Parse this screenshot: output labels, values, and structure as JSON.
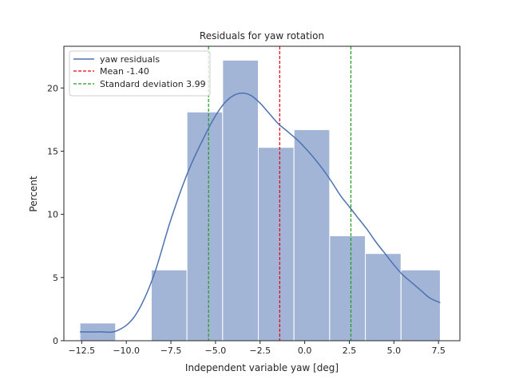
{
  "chart_data": {
    "type": "bar",
    "title": "Residuals for yaw rotation",
    "xlabel": "Independent variable yaw [deg]",
    "ylabel": "Percent",
    "xlim": [
      -13.5,
      8.7
    ],
    "ylim": [
      0,
      23.3
    ],
    "xticks": [
      -12.5,
      -10.0,
      -7.5,
      -5.0,
      -2.5,
      0.0,
      2.5,
      5.0,
      7.5
    ],
    "xtick_labels": [
      "−12.5",
      "−10.0",
      "−7.5",
      "−5.0",
      "−2.5",
      "0.0",
      "2.5",
      "5.0",
      "7.5"
    ],
    "yticks": [
      0,
      5,
      10,
      15,
      20
    ],
    "ytick_labels": [
      "0",
      "5",
      "10",
      "15",
      "20"
    ],
    "grid": false,
    "legend_position": "top-left",
    "colors": {
      "bars": "#a3b5d7",
      "kde": "#4c72b0",
      "mean": "#e8000b",
      "std": "#1a9e1a"
    },
    "histogram": {
      "bin_edges": [
        -12.6,
        -10.6,
        -8.6,
        -6.6,
        -4.6,
        -2.6,
        -0.6,
        1.4,
        3.4,
        5.4,
        7.4
      ],
      "bin_edges_plot": [
        -12.6,
        -10.6,
        -8.6,
        -6.6,
        -4.6,
        -2.6,
        -0.6,
        1.4,
        3.4,
        5.4,
        7.6
      ],
      "values": [
        1.4,
        0.0,
        5.6,
        18.1,
        22.2,
        15.3,
        16.7,
        8.3,
        6.9,
        5.6
      ]
    },
    "series": [
      {
        "name": "yaw residuals",
        "type": "line",
        "x": [
          -12.6,
          -11.5,
          -10.5,
          -9.5,
          -8.5,
          -7.5,
          -6.5,
          -5.5,
          -5.0,
          -4.5,
          -4.0,
          -3.5,
          -3.0,
          -2.5,
          -2.0,
          -1.5,
          -1.0,
          -0.5,
          0.0,
          0.5,
          1.0,
          1.5,
          2.0,
          2.5,
          3.0,
          3.5,
          4.0,
          4.5,
          5.0,
          5.5,
          6.0,
          6.5,
          7.0,
          7.6
        ],
        "y": [
          0.7,
          0.7,
          0.8,
          2.0,
          5.0,
          9.6,
          13.5,
          16.5,
          17.8,
          18.8,
          19.4,
          19.6,
          19.4,
          18.8,
          18.0,
          17.2,
          16.6,
          16.0,
          15.3,
          14.5,
          13.6,
          12.6,
          11.5,
          10.6,
          9.7,
          8.8,
          7.8,
          6.9,
          6.0,
          5.2,
          4.6,
          4.0,
          3.4,
          3.0
        ]
      }
    ],
    "lines": {
      "mean": {
        "name": "Mean -1.40",
        "x": -1.4
      },
      "std": {
        "name": "Standard deviation 3.99",
        "x_values": [
          -5.39,
          2.59
        ]
      }
    }
  }
}
